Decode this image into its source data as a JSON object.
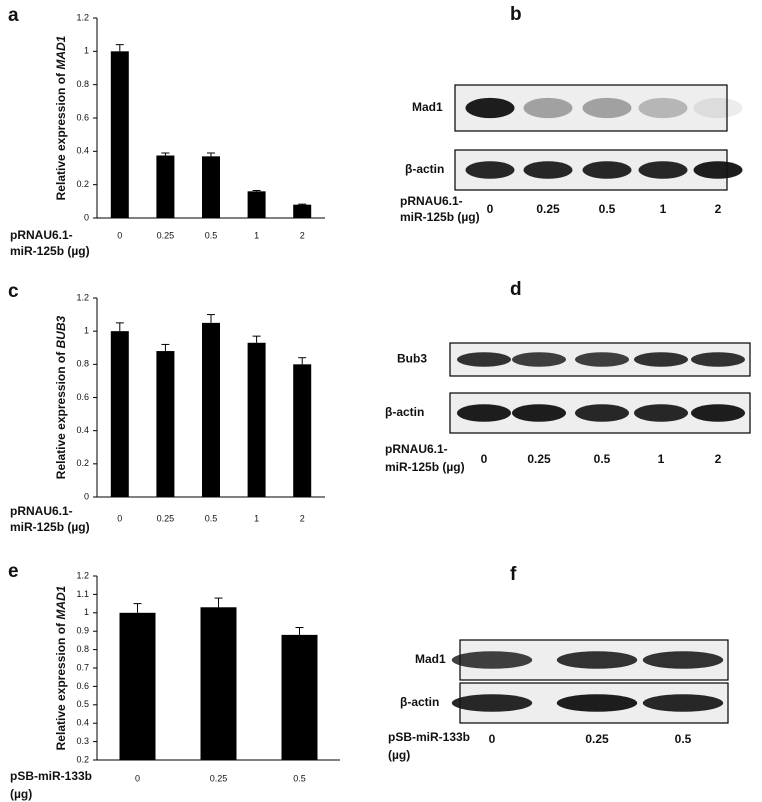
{
  "chart_data": [
    {
      "type": "bar",
      "panel": "a",
      "ylabel": [
        "Relative expression of ",
        "MAD1"
      ],
      "xlabel": [
        "pRNAU6.1-",
        "miR-125b (µg)"
      ],
      "categories": [
        "0",
        "0.25",
        "0.5",
        "1",
        "2"
      ],
      "values": [
        1.0,
        0.375,
        0.37,
        0.16,
        0.08
      ],
      "errors": [
        0.04,
        0.015,
        0.02,
        0.005,
        0.003
      ],
      "color": "#000000",
      "ylim": [
        0,
        1.2
      ],
      "yticks": [
        0,
        0.2,
        0.4,
        0.6,
        0.8,
        1,
        1.2
      ]
    },
    {
      "type": "bar",
      "panel": "c",
      "ylabel": [
        "Relative expression of ",
        "BUB3"
      ],
      "xlabel": [
        "pRNAU6.1-",
        "miR-125b (µg)"
      ],
      "categories": [
        "0",
        "0.25",
        "0.5",
        "1",
        "2"
      ],
      "values": [
        1.0,
        0.88,
        1.05,
        0.93,
        0.8
      ],
      "errors": [
        0.05,
        0.04,
        0.05,
        0.04,
        0.04
      ],
      "color": "#000000",
      "ylim": [
        0,
        1.2
      ],
      "yticks": [
        0,
        0.2,
        0.4,
        0.6,
        0.8,
        1,
        1.2
      ]
    },
    {
      "type": "bar",
      "panel": "e",
      "ylabel": [
        "Relative expression of ",
        "MAD1"
      ],
      "xlabel": [
        "pSB-miR-133b",
        "(µg)"
      ],
      "categories": [
        "0",
        "0.25",
        "0.5"
      ],
      "values": [
        1.0,
        1.03,
        0.88
      ],
      "errors": [
        0.05,
        0.05,
        0.04
      ],
      "color": "#000000",
      "ylim": [
        0.2,
        1.2
      ],
      "yticks": [
        0.2,
        0.3,
        0.4,
        0.5,
        0.6,
        0.7,
        0.8,
        0.9,
        1,
        1.1,
        1.2
      ]
    }
  ],
  "blots": [
    {
      "panel": "b",
      "rows": [
        "Mad1",
        "β-actin"
      ],
      "xlabel": [
        "pRNAU6.1-",
        "miR-125b (µg)"
      ],
      "lanes": [
        "0",
        "0.25",
        "0.5",
        "1",
        "2"
      ]
    },
    {
      "panel": "d",
      "rows": [
        "Bub3",
        "β-actin"
      ],
      "xlabel": [
        "pRNAU6.1-",
        "miR-125b (µg)"
      ],
      "lanes": [
        "0",
        "0.25",
        "0.5",
        "1",
        "2"
      ]
    },
    {
      "panel": "f",
      "rows": [
        "Mad1",
        "β-actin"
      ],
      "xlabel": [
        "pSB-miR-133b",
        "(µg)"
      ],
      "lanes": [
        "0",
        "0.25",
        "0.5"
      ]
    }
  ]
}
